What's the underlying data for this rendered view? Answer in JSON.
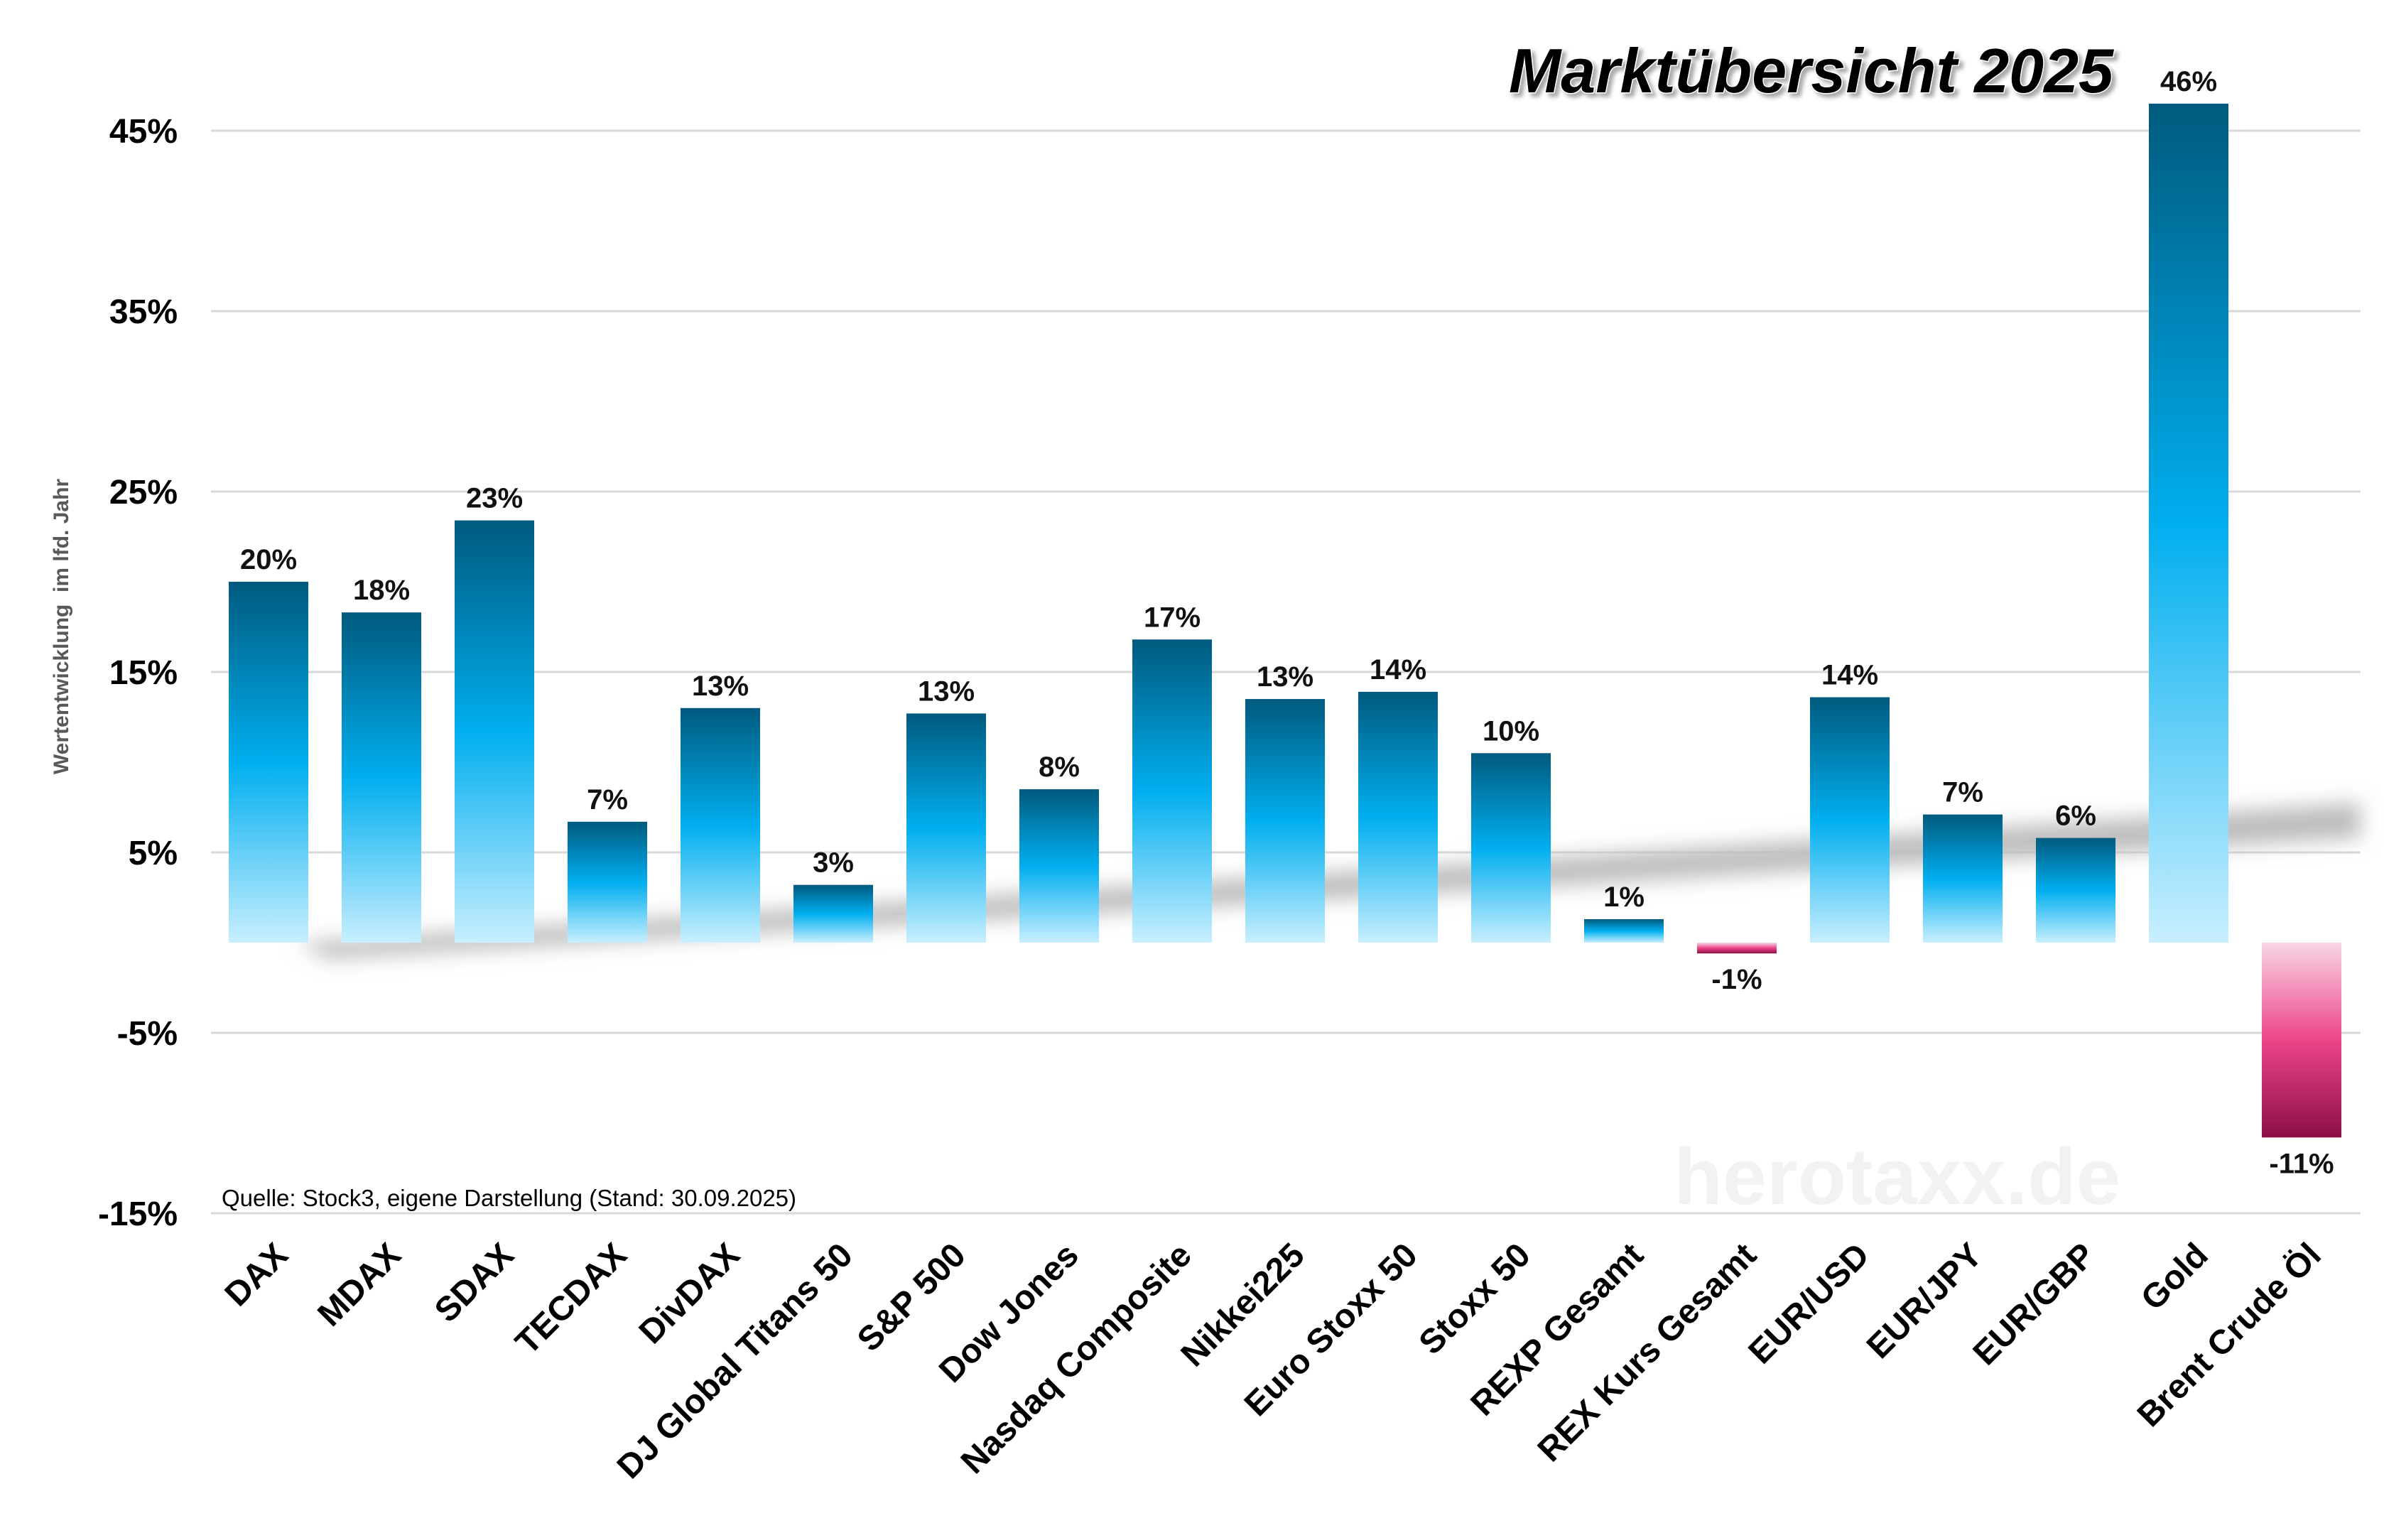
{
  "chart_data": {
    "type": "bar",
    "title": "Marktübersicht 2025",
    "xlabel": "",
    "ylabel": "Wertentwicklung  im lfd. Jahr",
    "ylim": [
      -15,
      48
    ],
    "yticks": [
      45,
      35,
      25,
      15,
      5,
      -5,
      -15
    ],
    "ytick_labels": [
      "45%",
      "35%",
      "25%",
      "15%",
      "5%",
      "-5%",
      "-15%"
    ],
    "grid": true,
    "categories": [
      "DAX",
      "MDAX",
      "SDAX",
      "TECDAX",
      "DivDAX",
      "DJ Global Titans 50",
      "S&P 500",
      "Dow Jones",
      "Nasdaq Composite",
      "Nikkei225",
      "Euro Stoxx 50",
      "Stoxx 50",
      "REXP Gesamt",
      "REX Kurs Gesamt",
      "EUR/USD",
      "EUR/JPY",
      "EUR/GBP",
      "Gold",
      "Brent Crude Öl"
    ],
    "values": [
      20.0,
      18.3,
      23.4,
      6.7,
      13.0,
      3.2,
      12.7,
      8.5,
      16.8,
      13.5,
      13.9,
      10.5,
      1.3,
      -0.6,
      13.6,
      7.1,
      5.8,
      46.5,
      -10.8
    ],
    "value_labels": [
      "20%",
      "18%",
      "23%",
      "7%",
      "13%",
      "3%",
      "13%",
      "8%",
      "17%",
      "13%",
      "14%",
      "10%",
      "1%",
      "-1%",
      "14%",
      "7%",
      "6%",
      "46%",
      "-11%"
    ],
    "source_note": "Quelle: Stock3, eigene Darstellung (Stand: 30.09.2025)",
    "watermark": "herotaxx.de",
    "colors": {
      "positive_top": "#005a7e",
      "positive_mid": "#00aeef",
      "positive_bottom": "#c8efff",
      "negative_top": "#f9d5e5",
      "negative_mid": "#ec4589",
      "negative_bottom": "#8b0f45",
      "grid": "#d9d9d9"
    }
  }
}
